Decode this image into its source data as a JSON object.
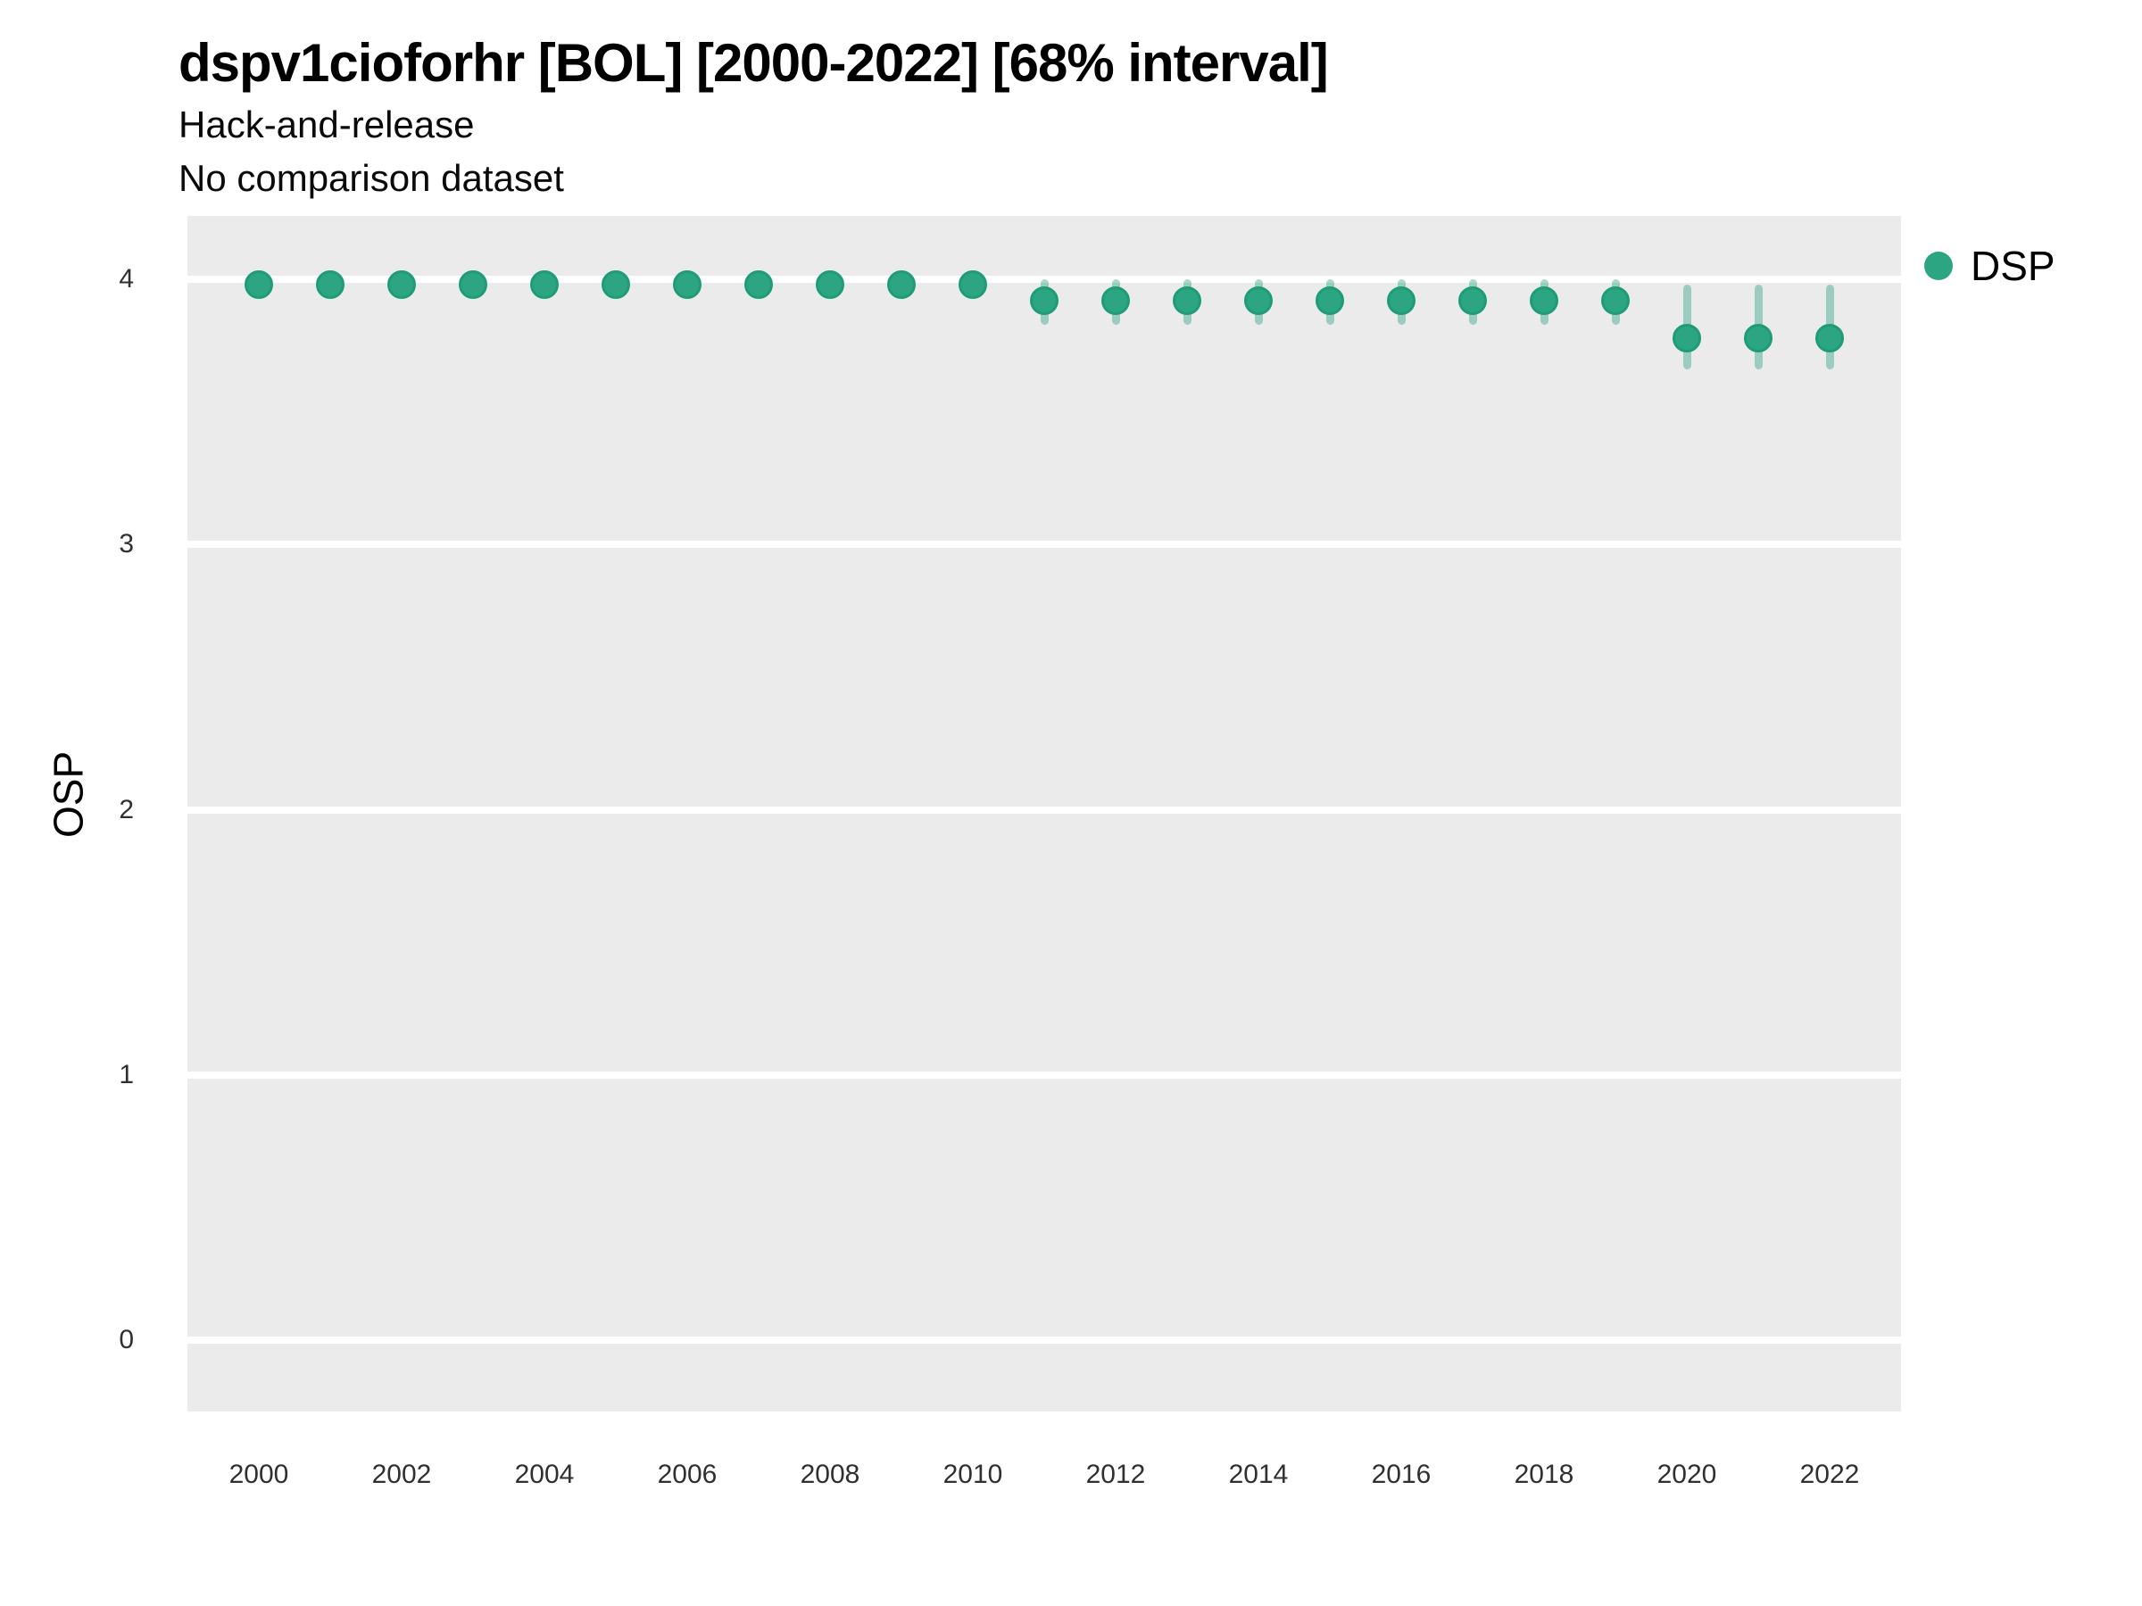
{
  "chart_data": {
    "type": "scatter",
    "title": "dspv1cioforhr [BOL] [2000-2022] [68% interval]",
    "subtitle_lines": [
      "Hack-and-release",
      "No comparison dataset"
    ],
    "xlabel": "",
    "ylabel": "OSP",
    "interval_label": "68% interval",
    "legend_position": "right-top",
    "grid": "horizontal-major-white",
    "panel_background": "#ebebeb",
    "gridline_color": "#ffffff",
    "xlim": [
      1999,
      2023
    ],
    "ylim": [
      -0.27,
      4.24
    ],
    "xticks": [
      2000,
      2002,
      2004,
      2006,
      2008,
      2010,
      2012,
      2014,
      2016,
      2018,
      2020,
      2022
    ],
    "yticks": [
      0,
      1,
      2,
      3,
      4
    ],
    "x": [
      2000,
      2001,
      2002,
      2003,
      2004,
      2005,
      2006,
      2007,
      2008,
      2009,
      2010,
      2011,
      2012,
      2013,
      2014,
      2015,
      2016,
      2017,
      2018,
      2019,
      2020,
      2021,
      2022
    ],
    "series": [
      {
        "name": "DSP",
        "color": "#2ca583",
        "point_border_color": "#1f9c77",
        "interval_color": "rgba(44,165,131,0.42)",
        "values": [
          3.98,
          3.98,
          3.98,
          3.98,
          3.98,
          3.98,
          3.98,
          3.98,
          3.98,
          3.98,
          3.98,
          3.92,
          3.92,
          3.92,
          3.92,
          3.92,
          3.92,
          3.92,
          3.92,
          3.92,
          3.78,
          3.78,
          3.78
        ],
        "lower": [
          3.95,
          3.95,
          3.95,
          3.95,
          3.95,
          3.95,
          3.95,
          3.95,
          3.95,
          3.95,
          3.95,
          3.83,
          3.83,
          3.83,
          3.83,
          3.83,
          3.83,
          3.83,
          3.83,
          3.83,
          3.66,
          3.66,
          3.66
        ],
        "upper": [
          4.01,
          4.01,
          4.01,
          4.01,
          4.01,
          4.01,
          4.01,
          4.01,
          4.01,
          4.01,
          4.01,
          4.0,
          4.0,
          4.0,
          4.0,
          4.0,
          4.0,
          4.0,
          4.0,
          4.0,
          3.98,
          3.98,
          3.98
        ]
      }
    ]
  }
}
